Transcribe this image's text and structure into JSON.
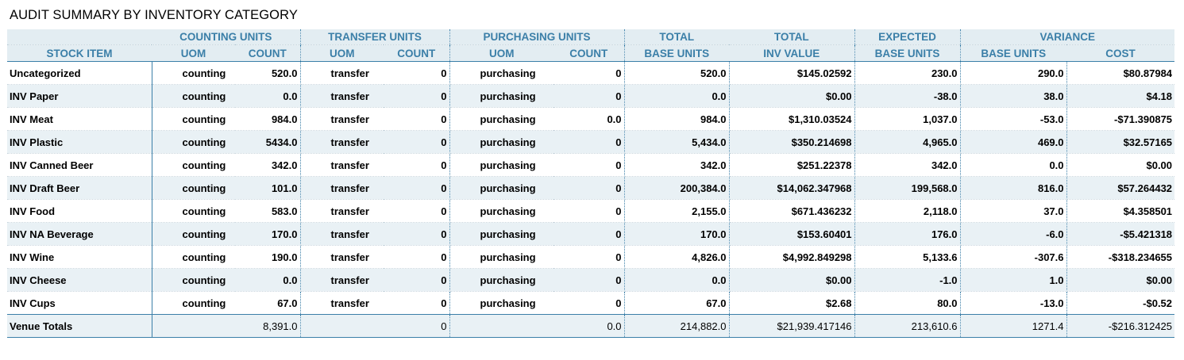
{
  "title": "AUDIT SUMMARY BY INVENTORY CATEGORY",
  "header": {
    "groups": [
      "COUNTING UNITS",
      "TRANSFER UNITS",
      "PURCHASING UNITS",
      "TOTAL",
      "TOTAL",
      "EXPECTED",
      "VARIANCE"
    ],
    "columns": [
      "STOCK ITEM",
      "UOM",
      "COUNT",
      "UOM",
      "COUNT",
      "UOM",
      "COUNT",
      "BASE UNITS",
      "INV VALUE",
      "BASE UNITS",
      "BASE UNITS",
      "COST"
    ]
  },
  "rows": [
    {
      "item": "Uncategorized",
      "counting_uom": "counting",
      "counting_count": "520.0",
      "transfer_uom": "transfer",
      "transfer_count": "0",
      "purchasing_uom": "purchasing",
      "purchasing_count": "0",
      "total_base_units": "520.0",
      "total_inv_value": "$145.02592",
      "expected_base_units": "230.0",
      "variance_base_units": "290.0",
      "variance_cost": "$80.87984"
    },
    {
      "item": "INV Paper",
      "counting_uom": "counting",
      "counting_count": "0.0",
      "transfer_uom": "transfer",
      "transfer_count": "0",
      "purchasing_uom": "purchasing",
      "purchasing_count": "0",
      "total_base_units": "0.0",
      "total_inv_value": "$0.00",
      "expected_base_units": "-38.0",
      "variance_base_units": "38.0",
      "variance_cost": "$4.18"
    },
    {
      "item": "INV Meat",
      "counting_uom": "counting",
      "counting_count": "984.0",
      "transfer_uom": "transfer",
      "transfer_count": "0",
      "purchasing_uom": "purchasing",
      "purchasing_count": "0.0",
      "total_base_units": "984.0",
      "total_inv_value": "$1,310.03524",
      "expected_base_units": "1,037.0",
      "variance_base_units": "-53.0",
      "variance_cost": "-$71.390875"
    },
    {
      "item": "INV Plastic",
      "counting_uom": "counting",
      "counting_count": "5434.0",
      "transfer_uom": "transfer",
      "transfer_count": "0",
      "purchasing_uom": "purchasing",
      "purchasing_count": "0",
      "total_base_units": "5,434.0",
      "total_inv_value": "$350.214698",
      "expected_base_units": "4,965.0",
      "variance_base_units": "469.0",
      "variance_cost": "$32.57165"
    },
    {
      "item": "INV Canned Beer",
      "counting_uom": "counting",
      "counting_count": "342.0",
      "transfer_uom": "transfer",
      "transfer_count": "0",
      "purchasing_uom": "purchasing",
      "purchasing_count": "0",
      "total_base_units": "342.0",
      "total_inv_value": "$251.22378",
      "expected_base_units": "342.0",
      "variance_base_units": "0.0",
      "variance_cost": "$0.00"
    },
    {
      "item": "INV Draft Beer",
      "counting_uom": "counting",
      "counting_count": "101.0",
      "transfer_uom": "transfer",
      "transfer_count": "0",
      "purchasing_uom": "purchasing",
      "purchasing_count": "0",
      "total_base_units": "200,384.0",
      "total_inv_value": "$14,062.347968",
      "expected_base_units": "199,568.0",
      "variance_base_units": "816.0",
      "variance_cost": "$57.264432"
    },
    {
      "item": "INV Food",
      "counting_uom": "counting",
      "counting_count": "583.0",
      "transfer_uom": "transfer",
      "transfer_count": "0",
      "purchasing_uom": "purchasing",
      "purchasing_count": "0",
      "total_base_units": "2,155.0",
      "total_inv_value": "$671.436232",
      "expected_base_units": "2,118.0",
      "variance_base_units": "37.0",
      "variance_cost": "$4.358501"
    },
    {
      "item": "INV NA Beverage",
      "counting_uom": "counting",
      "counting_count": "170.0",
      "transfer_uom": "transfer",
      "transfer_count": "0",
      "purchasing_uom": "purchasing",
      "purchasing_count": "0",
      "total_base_units": "170.0",
      "total_inv_value": "$153.60401",
      "expected_base_units": "176.0",
      "variance_base_units": "-6.0",
      "variance_cost": "-$5.421318"
    },
    {
      "item": "INV Wine",
      "counting_uom": "counting",
      "counting_count": "190.0",
      "transfer_uom": "transfer",
      "transfer_count": "0",
      "purchasing_uom": "purchasing",
      "purchasing_count": "0",
      "total_base_units": "4,826.0",
      "total_inv_value": "$4,992.849298",
      "expected_base_units": "5,133.6",
      "variance_base_units": "-307.6",
      "variance_cost": "-$318.234655"
    },
    {
      "item": "INV Cheese",
      "counting_uom": "counting",
      "counting_count": "0.0",
      "transfer_uom": "transfer",
      "transfer_count": "0",
      "purchasing_uom": "purchasing",
      "purchasing_count": "0",
      "total_base_units": "0.0",
      "total_inv_value": "$0.00",
      "expected_base_units": "-1.0",
      "variance_base_units": "1.0",
      "variance_cost": "$0.00"
    },
    {
      "item": "INV Cups",
      "counting_uom": "counting",
      "counting_count": "67.0",
      "transfer_uom": "transfer",
      "transfer_count": "0",
      "purchasing_uom": "purchasing",
      "purchasing_count": "0",
      "total_base_units": "67.0",
      "total_inv_value": "$2.68",
      "expected_base_units": "80.0",
      "variance_base_units": "-13.0",
      "variance_cost": "-$0.52"
    }
  ],
  "totals": {
    "label": "Venue Totals",
    "counting_count": "8,391.0",
    "transfer_count": "0",
    "purchasing_count": "0.0",
    "total_base_units": "214,882.0",
    "total_inv_value": "$21,939.417146",
    "expected_base_units": "213,610.6",
    "variance_base_units": "1271.4",
    "variance_cost": "-$216.312425"
  }
}
